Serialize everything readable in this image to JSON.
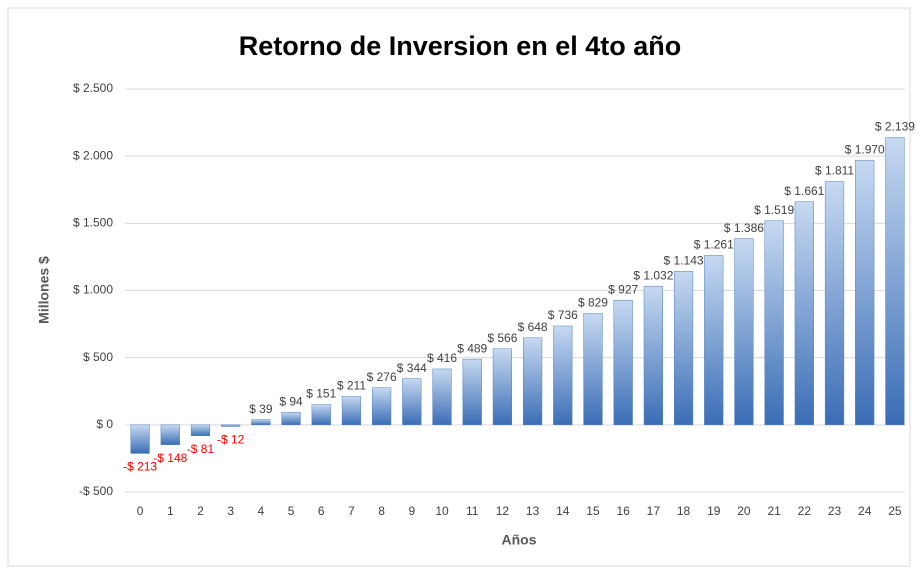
{
  "chart_data": {
    "type": "bar",
    "title": "Retorno de Inversion en el 4to año",
    "x_label": "Años",
    "y_label": "Millones $",
    "categories": [
      "0",
      "1",
      "2",
      "3",
      "4",
      "5",
      "6",
      "7",
      "8",
      "9",
      "10",
      "11",
      "12",
      "13",
      "14",
      "15",
      "16",
      "17",
      "18",
      "19",
      "20",
      "21",
      "22",
      "23",
      "24",
      "25"
    ],
    "values": [
      -213,
      -148,
      -81,
      -12,
      39,
      94,
      151,
      211,
      276,
      344,
      416,
      489,
      566,
      648,
      736,
      829,
      927,
      1032,
      1143,
      1261,
      1386,
      1519,
      1661,
      1811,
      1970,
      2139
    ],
    "value_labels": [
      "-$ 213",
      "-$ 148",
      "-$ 81",
      "-$ 12",
      "$ 39",
      "$ 94",
      "$ 151",
      "$ 211",
      "$ 276",
      "$ 344",
      "$ 416",
      "$ 489",
      "$ 566",
      "$ 648",
      "$ 736",
      "$ 829",
      "$ 927",
      "$ 1.032",
      "$ 1.143",
      "$ 1.261",
      "$ 1.386",
      "$ 1.519",
      "$ 1.661",
      "$ 1.811",
      "$ 1.970",
      "$ 2.139"
    ],
    "color": "#4f81bd",
    "negative_label_color": "#ff0000",
    "ylim": [
      -500,
      2500
    ],
    "yticks": [
      {
        "value": -500,
        "label": "-$ 500"
      },
      {
        "value": 0,
        "label": "$ 0"
      },
      {
        "value": 500,
        "label": "$ 500"
      },
      {
        "value": 1000,
        "label": "$ 1.000"
      },
      {
        "value": 1500,
        "label": "$ 1.500"
      },
      {
        "value": 2000,
        "label": "$ 2.000"
      },
      {
        "value": 2500,
        "label": "$ 2.500"
      }
    ],
    "grid": true
  }
}
